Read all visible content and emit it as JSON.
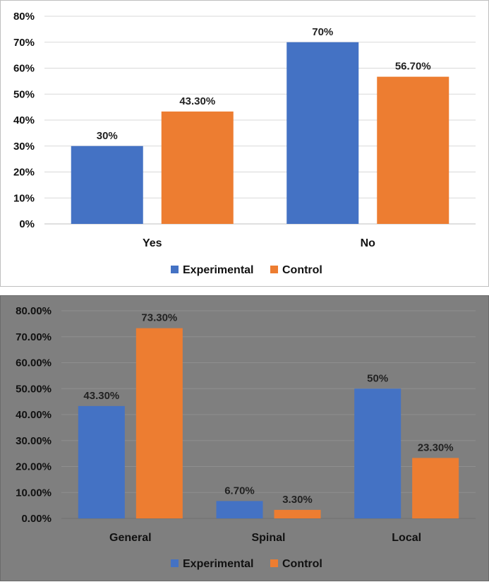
{
  "colors": {
    "experimental": "#4472c4",
    "control": "#ed7d31",
    "grid_light": "#d9d9d9",
    "grid_dark": "#8f8f8f",
    "bottom_bg": "#7f7f7f"
  },
  "chart_data": [
    {
      "type": "bar",
      "title": "",
      "xlabel": "",
      "ylabel": "",
      "ylim": [
        0,
        80
      ],
      "yticks": [
        "0%",
        "10%",
        "20%",
        "30%",
        "40%",
        "50%",
        "60%",
        "70%",
        "80%"
      ],
      "categories": [
        "Yes",
        "No"
      ],
      "series": [
        {
          "name": "Experimental",
          "values": [
            30,
            70
          ],
          "labels": [
            "30%",
            "70%"
          ]
        },
        {
          "name": "Control",
          "values": [
            43.3,
            56.7
          ],
          "labels": [
            "43.30%",
            "56.70%"
          ]
        }
      ],
      "grid": true,
      "legend": "bottom"
    },
    {
      "type": "bar",
      "title": "",
      "xlabel": "",
      "ylabel": "",
      "ylim": [
        0,
        80
      ],
      "yticks": [
        "0.00%",
        "10.00%",
        "20.00%",
        "30.00%",
        "40.00%",
        "50.00%",
        "60.00%",
        "70.00%",
        "80.00%"
      ],
      "categories": [
        "General",
        "Spinal",
        "Local"
      ],
      "series": [
        {
          "name": "Experimental",
          "values": [
            43.3,
            6.7,
            50
          ],
          "labels": [
            "43.30%",
            "6.70%",
            "50%"
          ]
        },
        {
          "name": "Control",
          "values": [
            73.3,
            3.3,
            23.3
          ],
          "labels": [
            "73.30%",
            "3.30%",
            "23.30%"
          ]
        }
      ],
      "grid": true,
      "legend": "bottom"
    }
  ]
}
